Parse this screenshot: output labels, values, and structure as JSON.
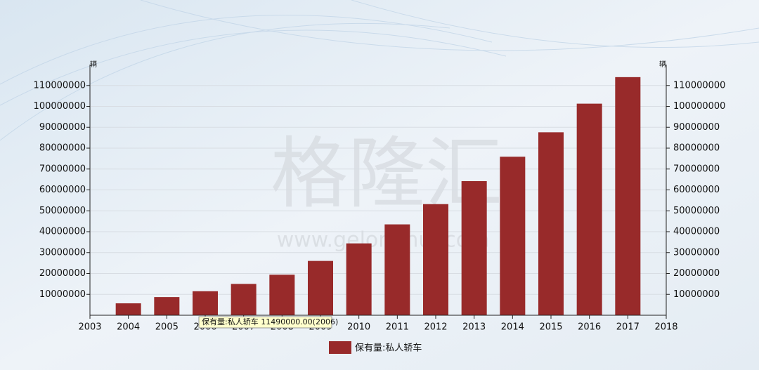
{
  "chart_data": {
    "type": "bar",
    "y_unit": "辆",
    "y2_unit": "辆",
    "watermark": "格隆汇",
    "watermark_url": "www.gelonghui.com",
    "tooltip": "保有量:私人轿车 11490000.00(2006)",
    "x": [
      2004,
      2005,
      2006,
      2007,
      2008,
      2009,
      2010,
      2011,
      2012,
      2013,
      2014,
      2015,
      2016,
      2017
    ],
    "series": [
      {
        "name": "保有量:私人轿车",
        "color": "#982a2a",
        "values": [
          5700000,
          8700000,
          11490000,
          15000000,
          19400000,
          26000000,
          34400000,
          43500000,
          53200000,
          64200000,
          75900000,
          87600000,
          101300000,
          114000000
        ]
      }
    ],
    "xlim": [
      2003,
      2018
    ],
    "xticks": [
      2003,
      2004,
      2005,
      2006,
      2007,
      2008,
      2009,
      2010,
      2011,
      2012,
      2013,
      2014,
      2015,
      2016,
      2017,
      2018
    ],
    "ylim": [
      0,
      120000000
    ],
    "yticks": [
      10000000,
      20000000,
      30000000,
      40000000,
      50000000,
      60000000,
      70000000,
      80000000,
      90000000,
      100000000,
      110000000
    ],
    "y2lim": [
      0,
      120000000
    ],
    "y2ticks": [
      10000000,
      20000000,
      30000000,
      40000000,
      50000000,
      60000000,
      70000000,
      80000000,
      90000000,
      100000000,
      110000000
    ],
    "grid": true
  }
}
